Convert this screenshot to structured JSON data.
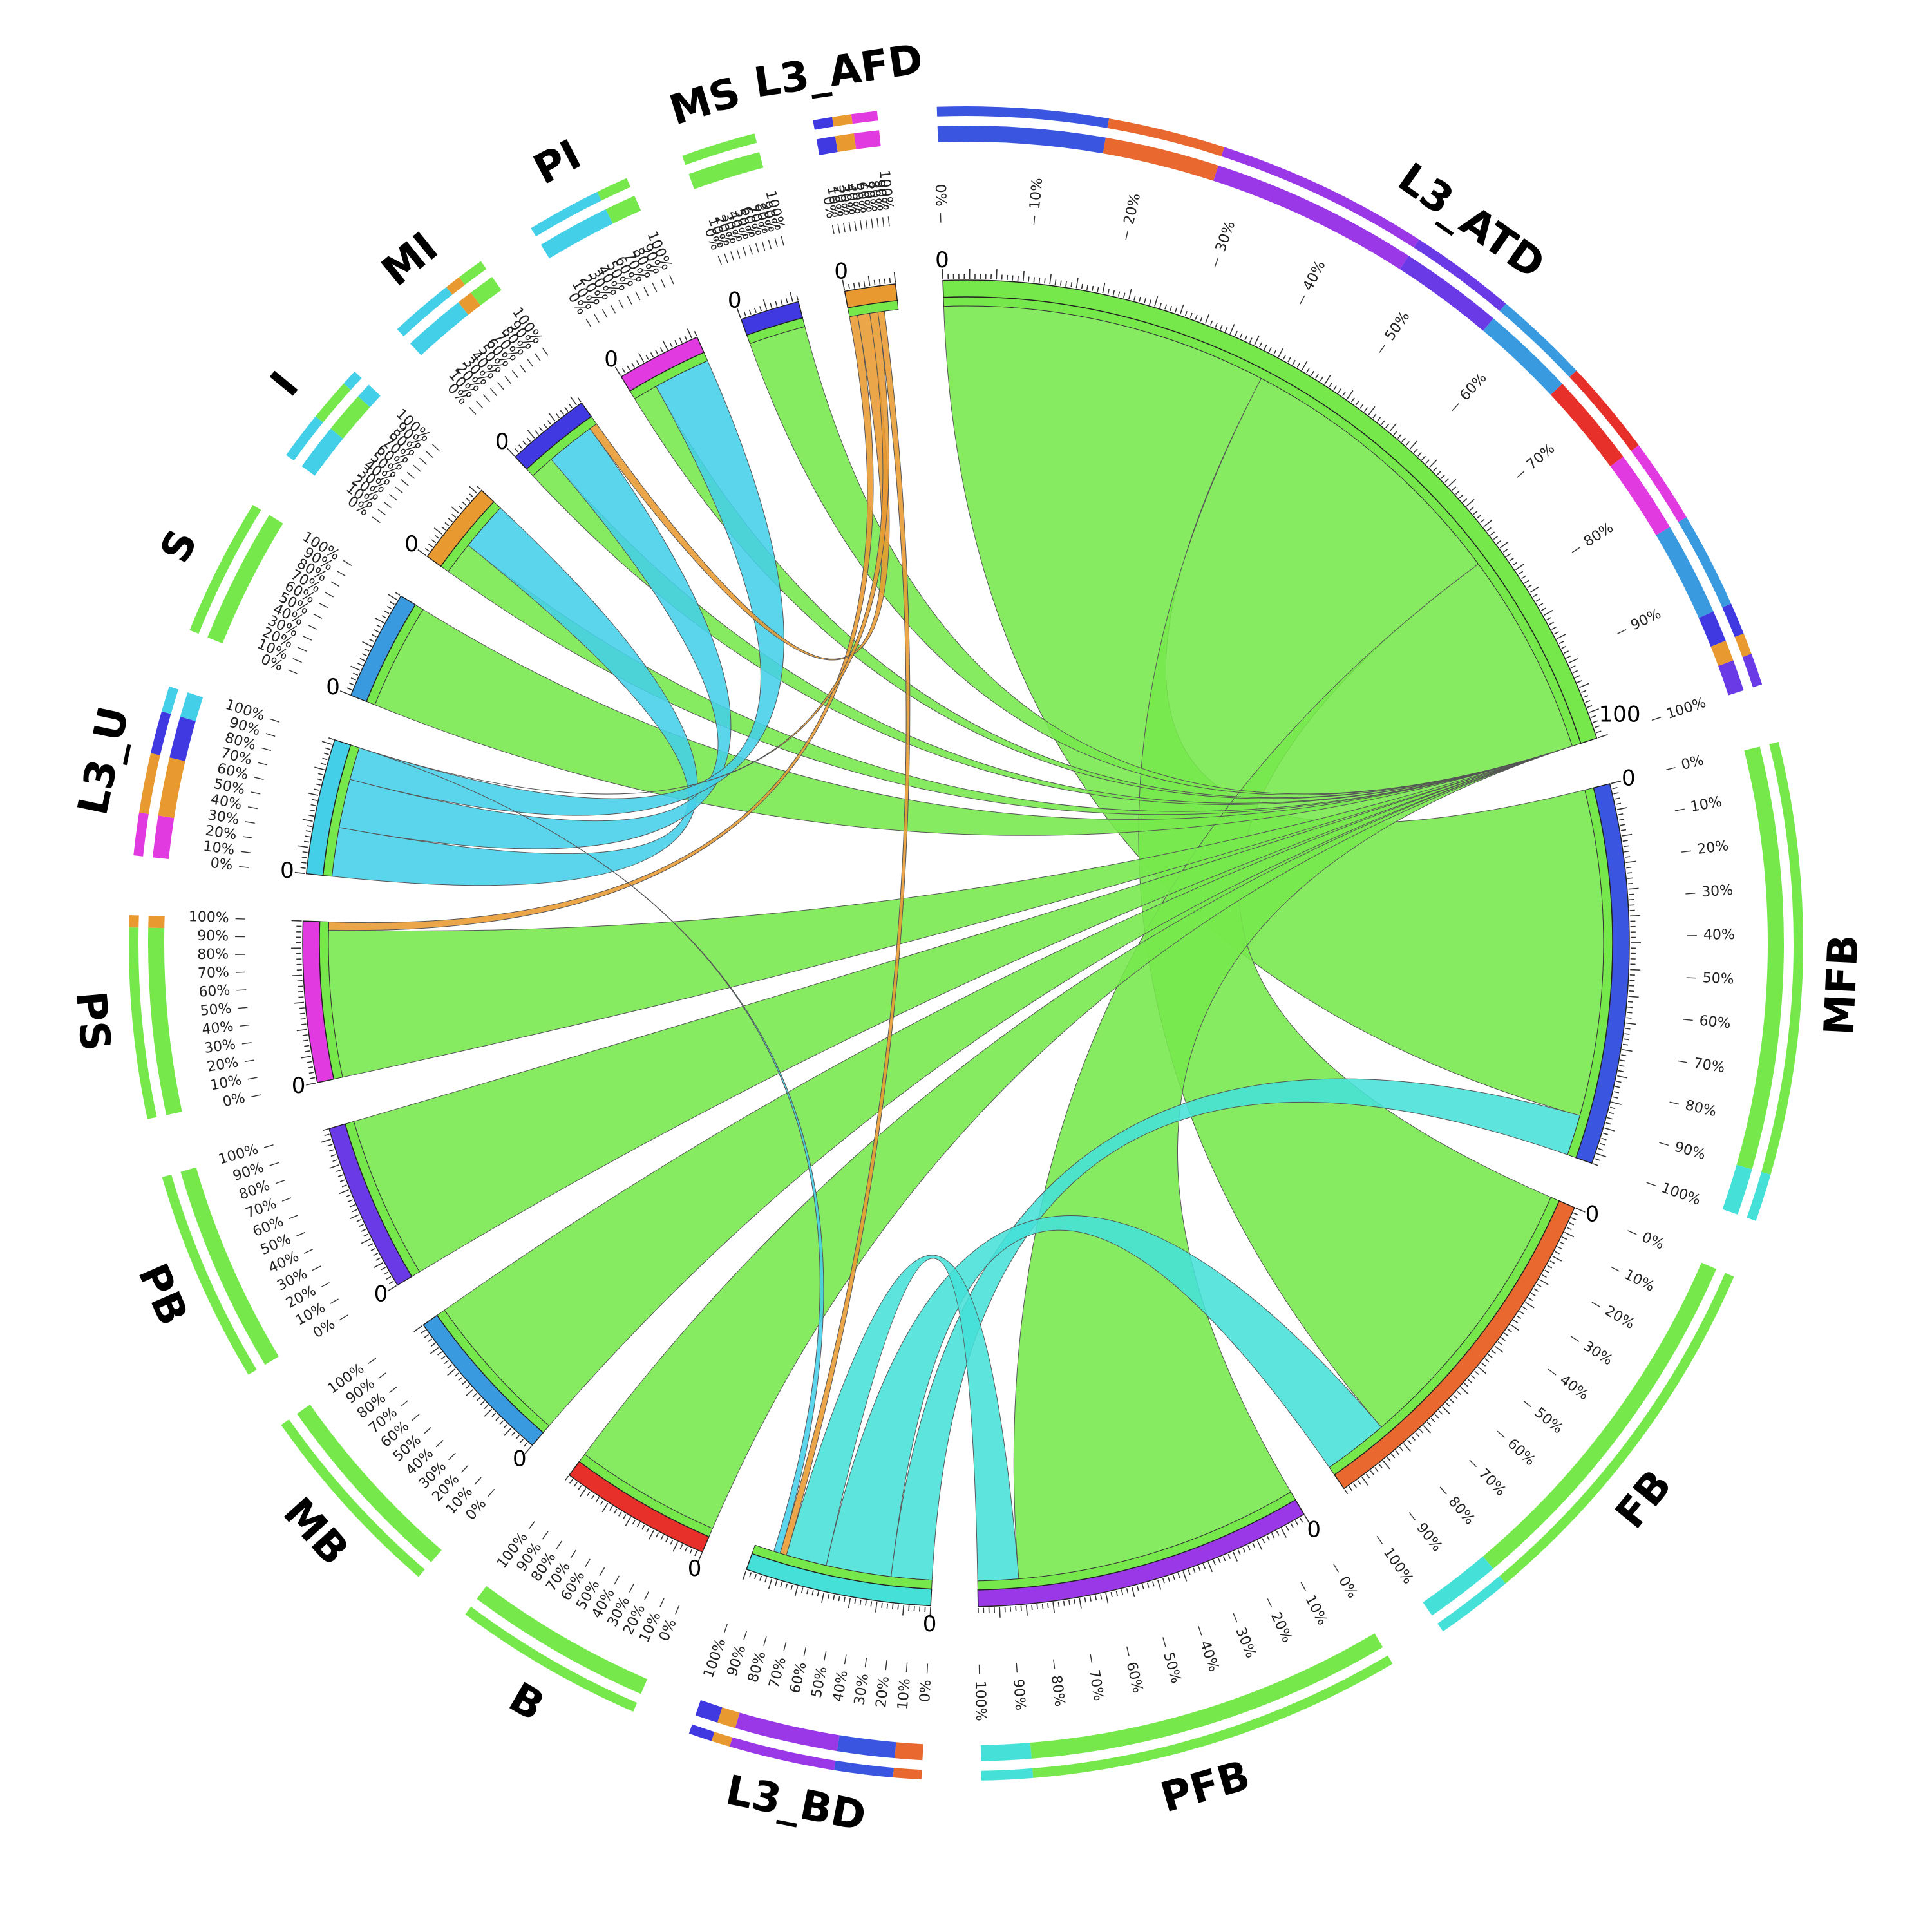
{
  "colors": {
    "bright_green": "#76e84c",
    "light_blue": "#44cfe8",
    "cyan": "#45e0d8",
    "orange": "#e89a30",
    "magenta": "#e03ae0",
    "purple": "#9a38e8",
    "violet": "#6a3ae6",
    "blue": "#3a55e0",
    "royal_blue": "#4038e0",
    "red": "#e8302a",
    "orange_red": "#e8682f",
    "sky_blue": "#3a9ae0"
  },
  "chart_data": {
    "type": "chord",
    "tick_zero_label": "0",
    "tick_hundred_label": "100",
    "percent_labels": [
      "0%",
      "10%",
      "20%",
      "30%",
      "40%",
      "50%",
      "60%",
      "70%",
      "80%",
      "90%",
      "100%"
    ],
    "segments": [
      {
        "name": "L3_ATD",
        "size": 100,
        "color": "bright_green",
        "composition": [
          {
            "color": "blue",
            "value": 16
          },
          {
            "color": "orange_red",
            "value": 11
          },
          {
            "color": "purple",
            "value": 20
          },
          {
            "color": "violet",
            "value": 10
          },
          {
            "color": "sky_blue",
            "value": 9
          },
          {
            "color": "red",
            "value": 9
          },
          {
            "color": "magenta",
            "value": 8
          },
          {
            "color": "sky_blue",
            "value": 9
          },
          {
            "color": "royal_blue",
            "value": 3
          },
          {
            "color": "orange",
            "value": 2
          },
          {
            "color": "violet",
            "value": 3
          }
        ]
      },
      {
        "name": "MFB",
        "size": 45,
        "color": "blue",
        "composition": [
          {
            "color": "bright_green",
            "value": 90
          },
          {
            "color": "cyan",
            "value": 10
          }
        ]
      },
      {
        "name": "FB",
        "size": 43,
        "color": "orange_red",
        "composition": [
          {
            "color": "bright_green",
            "value": 83
          },
          {
            "color": "cyan",
            "value": 17
          }
        ]
      },
      {
        "name": "PFB",
        "size": 40,
        "color": "purple",
        "composition": [
          {
            "color": "bright_green",
            "value": 88
          },
          {
            "color": "cyan",
            "value": 12
          }
        ]
      },
      {
        "name": "L3_BD",
        "size": 22,
        "color": "cyan",
        "composition": [
          {
            "color": "orange_red",
            "value": 12
          },
          {
            "color": "blue",
            "value": 25
          },
          {
            "color": "purple",
            "value": 45
          },
          {
            "color": "orange",
            "value": 8
          },
          {
            "color": "royal_blue",
            "value": 10
          }
        ]
      },
      {
        "name": "B",
        "size": 18,
        "color": "red",
        "composition": [
          {
            "color": "bright_green",
            "value": 100
          }
        ]
      },
      {
        "name": "MB",
        "size": 19,
        "color": "sky_blue",
        "composition": [
          {
            "color": "bright_green",
            "value": 100
          }
        ]
      },
      {
        "name": "PB",
        "size": 20,
        "color": "violet",
        "composition": [
          {
            "color": "bright_green",
            "value": 100
          }
        ]
      },
      {
        "name": "PS",
        "size": 19,
        "color": "magenta",
        "composition": [
          {
            "color": "bright_green",
            "value": 94
          },
          {
            "color": "orange",
            "value": 6
          }
        ]
      },
      {
        "name": "L3_U",
        "size": 16,
        "color": "light_blue",
        "composition": [
          {
            "color": "magenta",
            "value": 25
          },
          {
            "color": "orange",
            "value": 35
          },
          {
            "color": "royal_blue",
            "value": 25
          },
          {
            "color": "light_blue",
            "value": 15
          }
        ]
      },
      {
        "name": "S",
        "size": 13,
        "color": "sky_blue",
        "composition": [
          {
            "color": "bright_green",
            "value": 100
          }
        ]
      },
      {
        "name": "I",
        "size": 10,
        "color": "orange",
        "composition": [
          {
            "color": "light_blue",
            "value": 45
          },
          {
            "color": "bright_green",
            "value": 40
          },
          {
            "color": "light_blue",
            "value": 15
          }
        ]
      },
      {
        "name": "MI",
        "size": 10,
        "color": "royal_blue",
        "composition": [
          {
            "color": "light_blue",
            "value": 60
          },
          {
            "color": "orange",
            "value": 15
          },
          {
            "color": "bright_green",
            "value": 25
          }
        ]
      },
      {
        "name": "PI",
        "size": 10,
        "color": "magenta",
        "composition": [
          {
            "color": "light_blue",
            "value": 70
          },
          {
            "color": "bright_green",
            "value": 30
          }
        ]
      },
      {
        "name": "MS",
        "size": 7,
        "color": "royal_blue",
        "composition": [
          {
            "color": "bright_green",
            "value": 100
          }
        ]
      },
      {
        "name": "L3_AFD",
        "size": 6,
        "color": "orange",
        "composition": [
          {
            "color": "royal_blue",
            "value": 30
          },
          {
            "color": "orange",
            "value": 30
          },
          {
            "color": "magenta",
            "value": 40
          }
        ]
      }
    ],
    "links": [
      {
        "source": "L3_ATD",
        "target": "MFB",
        "value": 40,
        "color": "bright_green"
      },
      {
        "source": "L3_ATD",
        "target": "FB",
        "value": 35,
        "color": "bright_green"
      },
      {
        "source": "L3_ATD",
        "target": "PFB",
        "value": 35,
        "color": "bright_green"
      },
      {
        "source": "L3_ATD",
        "target": "B",
        "value": 18,
        "color": "bright_green"
      },
      {
        "source": "L3_ATD",
        "target": "MB",
        "value": 19,
        "color": "bright_green"
      },
      {
        "source": "L3_ATD",
        "target": "PB",
        "value": 20,
        "color": "bright_green"
      },
      {
        "source": "L3_ATD",
        "target": "PS",
        "value": 18,
        "color": "bright_green"
      },
      {
        "source": "L3_ATD",
        "target": "S",
        "value": 13,
        "color": "bright_green"
      },
      {
        "source": "L3_ATD",
        "target": "I",
        "value": 4,
        "color": "bright_green"
      },
      {
        "source": "L3_ATD",
        "target": "MI",
        "value": 3,
        "color": "bright_green"
      },
      {
        "source": "L3_ATD",
        "target": "PI",
        "value": 3,
        "color": "bright_green"
      },
      {
        "source": "L3_ATD",
        "target": "MS",
        "value": 7,
        "color": "bright_green"
      },
      {
        "source": "L3_BD",
        "target": "MFB",
        "value": 5,
        "color": "cyan"
      },
      {
        "source": "L3_BD",
        "target": "FB",
        "value": 8,
        "color": "cyan"
      },
      {
        "source": "L3_BD",
        "target": "PFB",
        "value": 5,
        "color": "cyan"
      },
      {
        "source": "L3_U",
        "target": "I",
        "value": 6,
        "color": "light_blue"
      },
      {
        "source": "L3_U",
        "target": "MI",
        "value": 6,
        "color": "light_blue"
      },
      {
        "source": "L3_U",
        "target": "PI",
        "value": 7,
        "color": "light_blue"
      },
      {
        "source": "L3_AFD",
        "target": "PS",
        "value": 1,
        "color": "orange"
      },
      {
        "source": "L3_AFD",
        "target": "MI",
        "value": 1.5,
        "color": "orange"
      },
      {
        "source": "L3_AFD",
        "target": "L3_U",
        "value": 1,
        "color": "orange"
      },
      {
        "source": "L3_AFD",
        "target": "L3_BD",
        "value": 0.8,
        "color": "orange"
      },
      {
        "source": "L3_U",
        "target": "L3_BD",
        "value": 0.8,
        "color": "light_blue"
      }
    ]
  }
}
